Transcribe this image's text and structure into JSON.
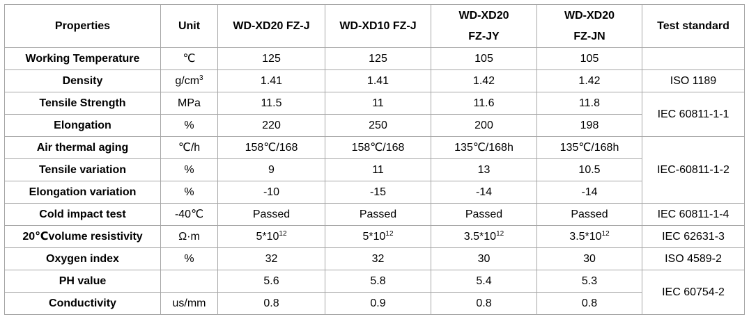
{
  "table": {
    "header": [
      "Properties",
      "Unit",
      "WD-XD20 FZ-J",
      "WD-XD10 FZ-J",
      [
        "WD-XD20",
        "FZ-JY"
      ],
      [
        "WD-XD20",
        "FZ-JN"
      ],
      "Test standard"
    ],
    "rows": [
      {
        "property": "Working Temperature",
        "unit": "℃",
        "values": [
          "125",
          "125",
          "105",
          "105"
        ]
      },
      {
        "property": "Density",
        "unit": {
          "base": "g/cm",
          "sup": "3"
        },
        "values": [
          "1.41",
          "1.41",
          "1.42",
          "1.42"
        ],
        "standard": "ISO 1189"
      },
      {
        "property": "Tensile Strength",
        "unit": "MPa",
        "values": [
          "11.5",
          "11",
          "11.6",
          "11.8"
        ],
        "standard": "IEC 60811-1-1"
      },
      {
        "property": "Elongation",
        "unit": "%",
        "values": [
          "220",
          "250",
          "200",
          "198"
        ]
      },
      {
        "property": "Air thermal aging",
        "unit": "℃/h",
        "values": [
          "158℃/168",
          "158℃/168",
          "135℃/168h",
          "135℃/168h"
        ],
        "standard": "IEC-60811-1-2"
      },
      {
        "property": "Tensile variation",
        "unit": "%",
        "values": [
          "9",
          "11",
          "13",
          "10.5"
        ]
      },
      {
        "property": "Elongation variation",
        "unit": "%",
        "values": [
          "-10",
          "-15",
          "-14",
          "-14"
        ]
      },
      {
        "property": "Cold impact test",
        "unit": "-40℃",
        "values": [
          "Passed",
          "Passed",
          "Passed",
          "Passed"
        ],
        "standard": "IEC 60811-1-4"
      },
      {
        "property": "20℃volume resistivity",
        "unit": "Ω·m",
        "values": [
          {
            "base": "5*10",
            "sup": "12"
          },
          {
            "base": "5*10",
            "sup": "12"
          },
          {
            "base": "3.5*10",
            "sup": "12"
          },
          {
            "base": "3.5*10",
            "sup": "12"
          }
        ],
        "standard": "IEC 62631-3"
      },
      {
        "property": "Oxygen index",
        "unit": "%",
        "values": [
          "32",
          "32",
          "30",
          "30"
        ],
        "standard": "ISO 4589-2"
      },
      {
        "property": "PH value",
        "values": [
          "5.6",
          "5.8",
          "5.4",
          "5.3"
        ],
        "standard": "IEC 60754-2"
      },
      {
        "property": "Conductivity",
        "unit": "us/mm",
        "values": [
          "0.8",
          "0.9",
          "0.8",
          "0.8"
        ]
      }
    ]
  }
}
